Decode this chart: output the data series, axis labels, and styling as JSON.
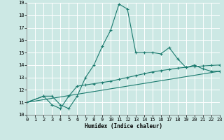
{
  "xlabel": "Humidex (Indice chaleur)",
  "xlim": [
    0,
    23
  ],
  "ylim": [
    10,
    19
  ],
  "xticks": [
    0,
    1,
    2,
    3,
    4,
    5,
    6,
    7,
    8,
    9,
    10,
    11,
    12,
    13,
    14,
    15,
    16,
    17,
    18,
    19,
    20,
    21,
    22,
    23
  ],
  "yticks": [
    10,
    11,
    12,
    13,
    14,
    15,
    16,
    17,
    18,
    19
  ],
  "bg_color": "#cce8e4",
  "grid_color": "#ffffff",
  "line_color": "#1a7a6e",
  "line1_x": [
    0,
    2,
    3,
    4,
    5,
    6,
    7,
    8,
    9,
    10,
    11,
    12,
    13,
    14,
    15,
    16,
    17,
    18,
    19,
    20,
    21,
    22,
    23
  ],
  "line1_y": [
    11.0,
    11.5,
    11.5,
    10.8,
    10.5,
    11.5,
    13.0,
    14.0,
    15.5,
    16.8,
    18.9,
    18.5,
    15.0,
    15.0,
    15.0,
    14.9,
    15.4,
    14.5,
    13.8,
    14.0,
    13.7,
    13.5,
    13.5
  ],
  "line2_x": [
    0,
    2,
    3,
    4,
    5,
    6,
    7,
    8,
    9,
    10,
    11,
    12,
    13,
    14,
    15,
    16,
    17,
    18,
    19,
    20,
    21,
    22,
    23
  ],
  "line2_y": [
    11.0,
    11.5,
    10.8,
    10.5,
    11.5,
    12.3,
    12.4,
    12.5,
    12.6,
    12.7,
    12.85,
    13.0,
    13.15,
    13.3,
    13.45,
    13.55,
    13.65,
    13.75,
    13.82,
    13.88,
    13.93,
    13.97,
    14.0
  ],
  "line3_x": [
    0,
    23
  ],
  "line3_y": [
    11.0,
    13.5
  ]
}
